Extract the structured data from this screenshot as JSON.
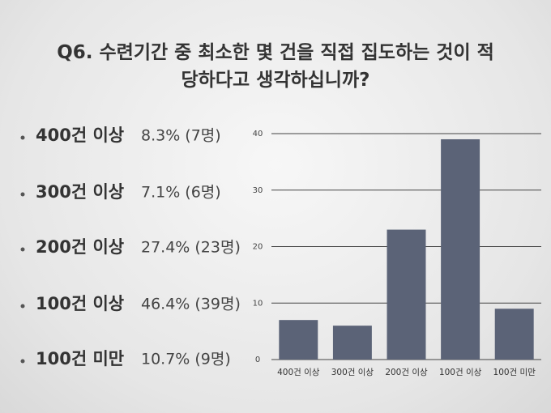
{
  "chart_data": {
    "type": "bar",
    "title": "Q6. 수련기간 중 최소한 몇 건을 직접 집도하는 것이 적당하다고 생각하십니까?",
    "bullets": [
      {
        "label": "400건 이상",
        "share": "8.3% (7명)"
      },
      {
        "label": "300건 이상",
        "share": "7.1% (6명)"
      },
      {
        "label": "200건 이상",
        "share": "27.4% (23명)"
      },
      {
        "label": "100건 이상",
        "share": "46.4% (39명)"
      },
      {
        "label": "100건 미만",
        "share": "10.7% (9명)"
      }
    ],
    "categories": [
      "400건 이상",
      "300건 이상",
      "200건 이상",
      "100건 이상",
      "100건 미만"
    ],
    "values": [
      7,
      6,
      23,
      39,
      9
    ],
    "color": "#5b6377",
    "ylim": [
      0,
      40
    ],
    "yticks": [
      0,
      10,
      20,
      30,
      40
    ],
    "grid": true
  }
}
